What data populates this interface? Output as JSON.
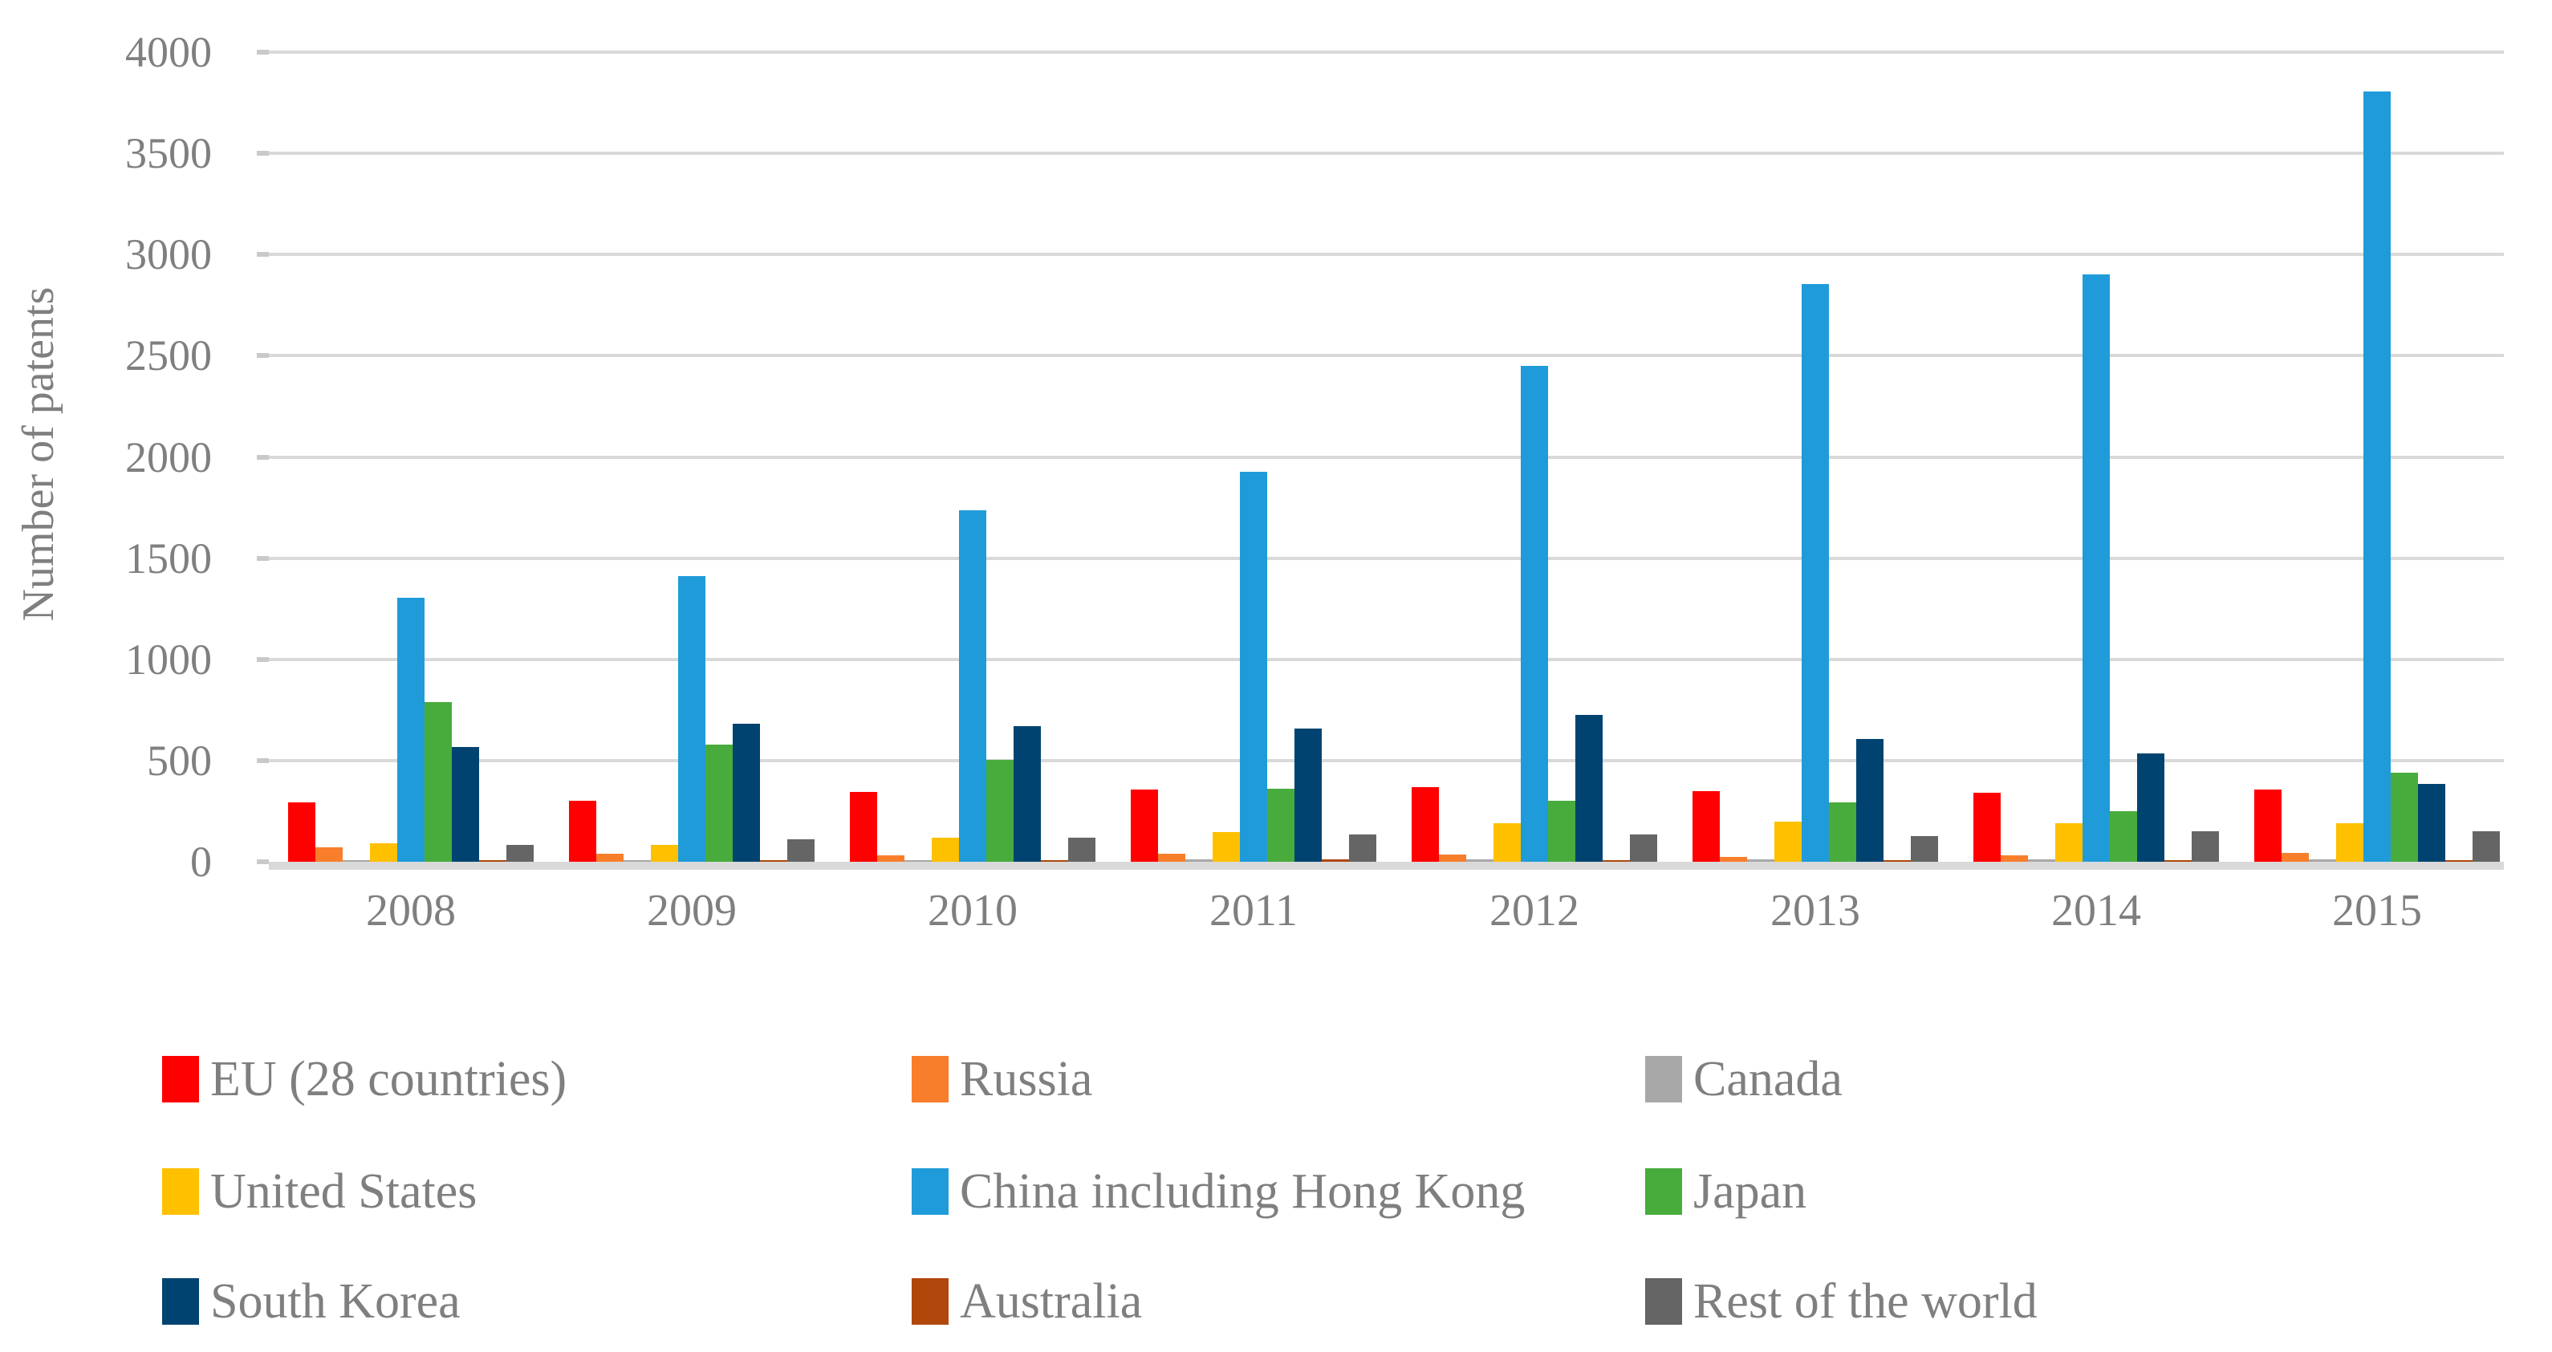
{
  "chart_data": {
    "type": "bar",
    "title": "",
    "xlabel": "",
    "ylabel": "Number of patents",
    "ylim": [
      0,
      4000
    ],
    "ytick_step": 500,
    "yticks": [
      0,
      500,
      1000,
      1500,
      2000,
      2500,
      3000,
      3500,
      4000
    ],
    "grid": true,
    "legend_position": "bottom",
    "categories": [
      "2008",
      "2009",
      "2010",
      "2011",
      "2012",
      "2013",
      "2014",
      "2015"
    ],
    "series": [
      {
        "name": "EU (28 countries)",
        "color": "#ff0000",
        "values": [
          295,
          300,
          345,
          355,
          370,
          350,
          340,
          355
        ]
      },
      {
        "name": "Russia",
        "color": "#f87e2b",
        "values": [
          70,
          40,
          30,
          40,
          35,
          25,
          30,
          45
        ]
      },
      {
        "name": "Canada",
        "color": "#a8a8a8",
        "values": [
          5,
          5,
          5,
          10,
          10,
          10,
          10,
          10
        ]
      },
      {
        "name": "United States",
        "color": "#ffc000",
        "values": [
          90,
          85,
          120,
          145,
          190,
          200,
          190,
          190
        ]
      },
      {
        "name": "China including Hong Kong",
        "color": "#209bd9",
        "values": [
          1305,
          1410,
          1735,
          1925,
          2450,
          2855,
          2900,
          3805
        ]
      },
      {
        "name": "Japan",
        "color": "#48ac3c",
        "values": [
          790,
          580,
          505,
          360,
          300,
          295,
          250,
          440
        ]
      },
      {
        "name": "South Korea",
        "color": "#004370",
        "values": [
          565,
          680,
          670,
          660,
          725,
          605,
          535,
          385
        ]
      },
      {
        "name": "Australia",
        "color": "#b0470b",
        "values": [
          5,
          5,
          5,
          10,
          5,
          5,
          5,
          5
        ]
      },
      {
        "name": "Rest of the world",
        "color": "#656565",
        "values": [
          85,
          110,
          120,
          135,
          135,
          125,
          150,
          150
        ]
      }
    ],
    "colors": {
      "gridline": "#d9d9d9",
      "axis_text": "#7f7f7f",
      "background": "#ffffff"
    }
  }
}
